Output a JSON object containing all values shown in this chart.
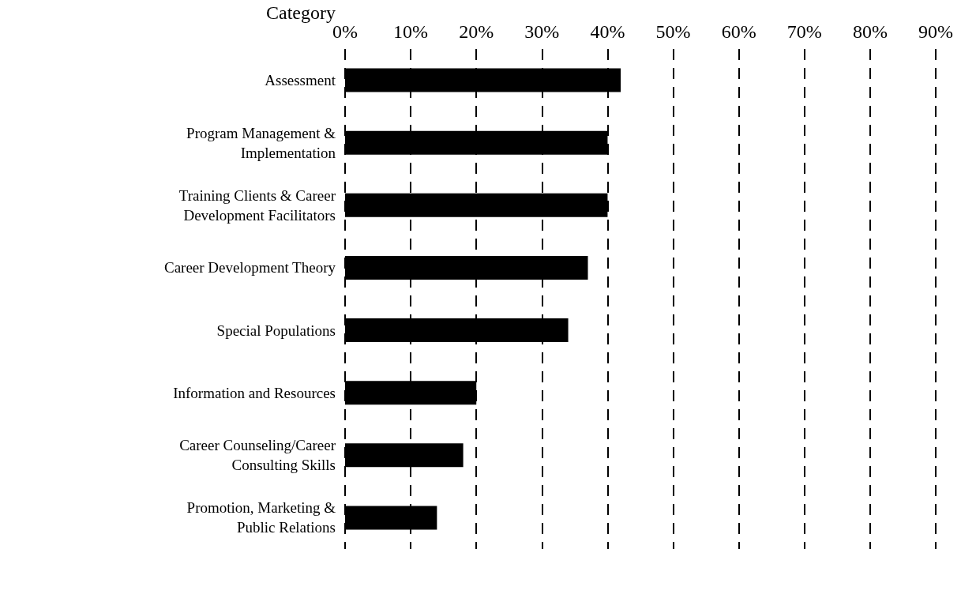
{
  "chart_data": {
    "type": "bar",
    "orientation": "horizontal",
    "ylabel": "Category",
    "categories": [
      "Assessment",
      "Program Management &\nImplementation",
      "Training Clients & Career\nDevelopment Facilitators",
      "Career Development Theory",
      "Special Populations",
      "Information and Resources",
      "Career Counseling/Career\nConsulting Skills",
      "Promotion, Marketing &\nPublic Relations"
    ],
    "values": [
      42,
      40,
      40,
      37,
      34,
      20,
      18,
      14
    ],
    "color": "#000000",
    "xlim": [
      0,
      90
    ],
    "xticks": [
      {
        "value": 0,
        "label": "0%"
      },
      {
        "value": 10,
        "label": "10%"
      },
      {
        "value": 20,
        "label": "20%"
      },
      {
        "value": 30,
        "label": "30%"
      },
      {
        "value": 40,
        "label": "40%"
      },
      {
        "value": 50,
        "label": "50%"
      },
      {
        "value": 60,
        "label": "60%"
      },
      {
        "value": 70,
        "label": "70%"
      },
      {
        "value": 80,
        "label": "80%"
      },
      {
        "value": 90,
        "label": "90%"
      }
    ],
    "grid": "x"
  }
}
